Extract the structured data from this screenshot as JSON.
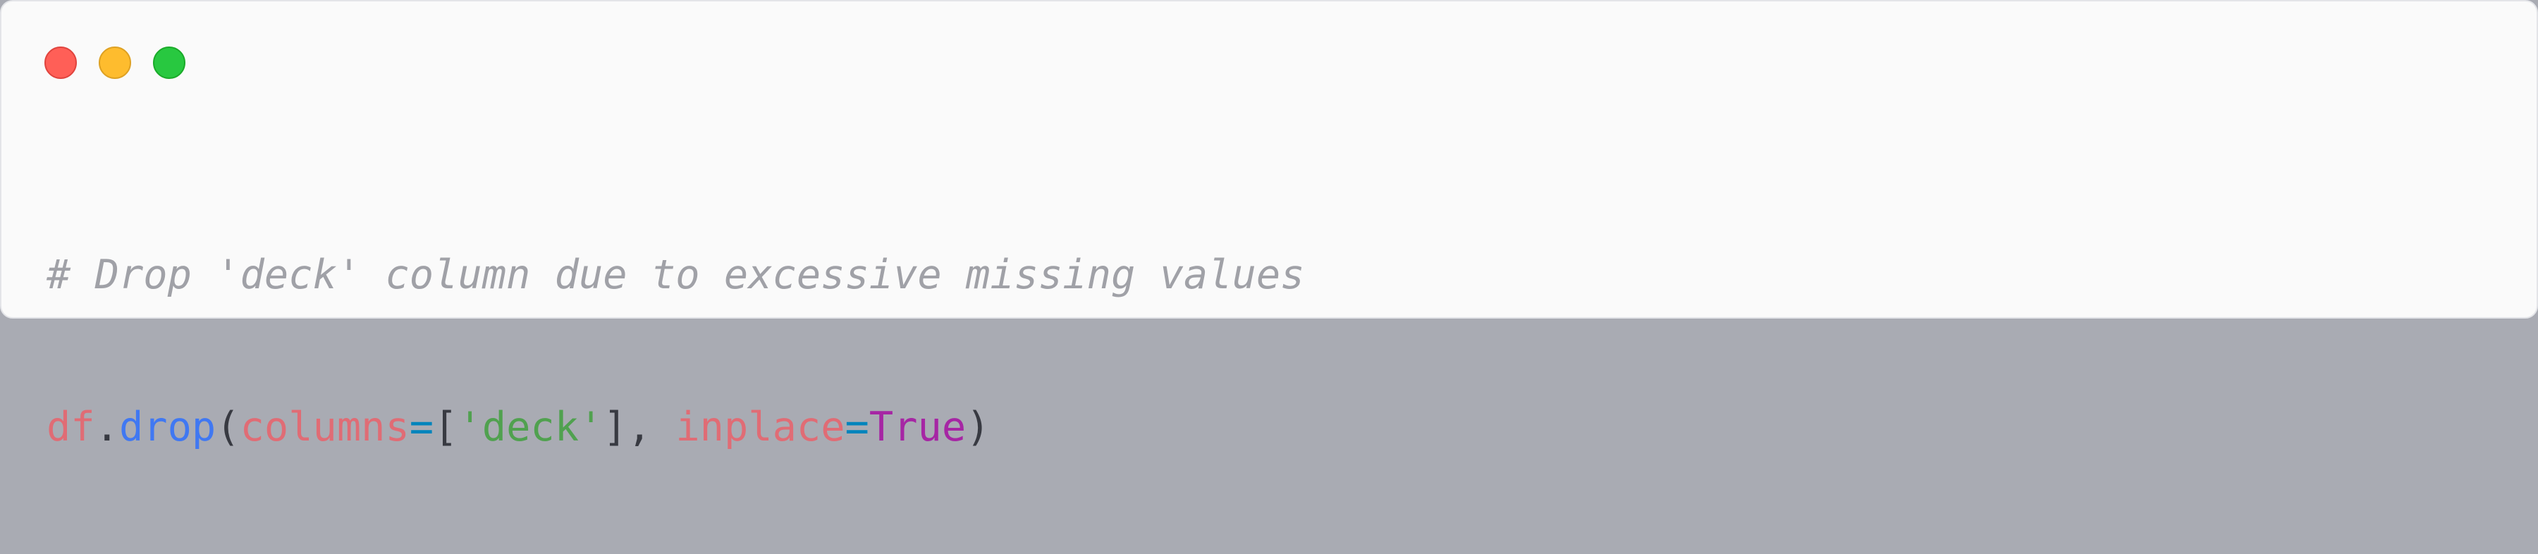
{
  "window": {
    "controls": [
      "close",
      "minimize",
      "maximize"
    ]
  },
  "code": {
    "comment": "# Drop 'deck' column due to excessive missing values",
    "tokens": {
      "obj": "df",
      "dot": ".",
      "method": "drop",
      "open_paren": "(",
      "kw_columns": "columns",
      "eq1": "=",
      "open_bracket": "[",
      "str_deck": "'deck'",
      "close_bracket": "]",
      "comma": ", ",
      "kw_inplace": "inplace",
      "eq2": "=",
      "val_true": "True",
      "close_paren": ")"
    }
  },
  "colors": {
    "red": "#ff5f57",
    "yellow": "#febc2e",
    "green": "#28c840",
    "comment": "#a0a1a7",
    "variable": "#e06c75",
    "function": "#4078f2",
    "string": "#50a14f",
    "keyword": "#a626a4",
    "operator": "#0184bc"
  }
}
